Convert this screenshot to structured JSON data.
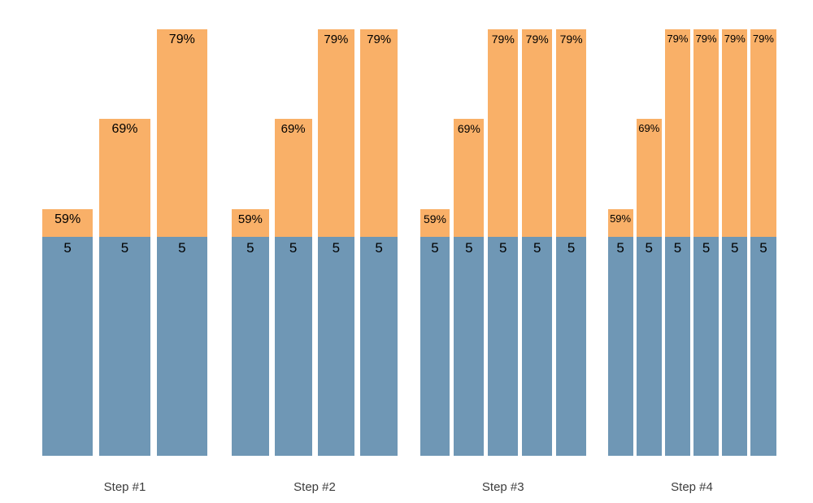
{
  "chart_data": {
    "type": "bar",
    "variant": "grouped-stacked",
    "title": "",
    "xlabel": "",
    "ylabel": "",
    "axes_visible": false,
    "background": "#ffffff",
    "colors": {
      "base_segment": "#6f97b5",
      "top_segment": "#f9b068",
      "segment_label_text": "#000000",
      "group_label_text": "#3d3d3d"
    },
    "base_value": 5,
    "top_percent_levels": [
      59,
      69,
      79
    ],
    "groups": [
      {
        "label": "Step #1",
        "bars": [
          {
            "base_label": "5",
            "pct": 59,
            "pct_label": "59%"
          },
          {
            "base_label": "5",
            "pct": 69,
            "pct_label": "69%"
          },
          {
            "base_label": "5",
            "pct": 79,
            "pct_label": "79%"
          }
        ]
      },
      {
        "label": "Step #2",
        "bars": [
          {
            "base_label": "5",
            "pct": 59,
            "pct_label": "59%"
          },
          {
            "base_label": "5",
            "pct": 69,
            "pct_label": "69%"
          },
          {
            "base_label": "5",
            "pct": 79,
            "pct_label": "79%"
          },
          {
            "base_label": "5",
            "pct": 79,
            "pct_label": "79%"
          }
        ]
      },
      {
        "label": "Step #3",
        "bars": [
          {
            "base_label": "5",
            "pct": 59,
            "pct_label": "59%"
          },
          {
            "base_label": "5",
            "pct": 69,
            "pct_label": "69%"
          },
          {
            "base_label": "5",
            "pct": 79,
            "pct_label": "79%"
          },
          {
            "base_label": "5",
            "pct": 79,
            "pct_label": "79%"
          },
          {
            "base_label": "5",
            "pct": 79,
            "pct_label": "79%"
          }
        ]
      },
      {
        "label": "Step #4",
        "bars": [
          {
            "base_label": "5",
            "pct": 59,
            "pct_label": "59%"
          },
          {
            "base_label": "5",
            "pct": 69,
            "pct_label": "69%"
          },
          {
            "base_label": "5",
            "pct": 79,
            "pct_label": "79%"
          },
          {
            "base_label": "5",
            "pct": 79,
            "pct_label": "79%"
          },
          {
            "base_label": "5",
            "pct": 79,
            "pct_label": "79%"
          },
          {
            "base_label": "5",
            "pct": 79,
            "pct_label": "79%"
          }
        ]
      }
    ]
  }
}
